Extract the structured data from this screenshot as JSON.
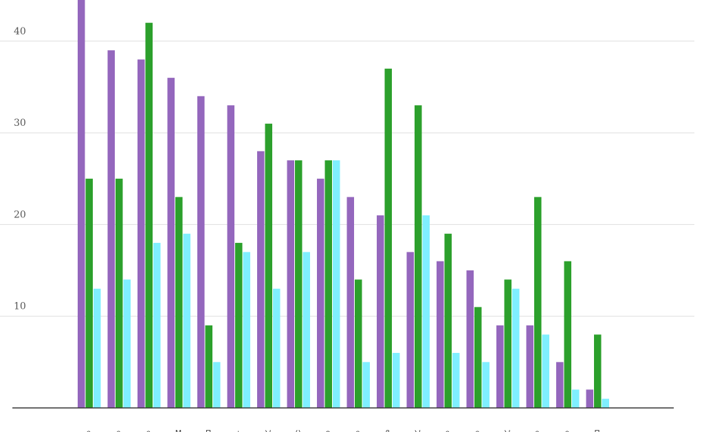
{
  "chart_data": {
    "type": "bar",
    "title": "",
    "xlabel": "",
    "ylabel": "",
    "ylim": [
      0,
      45
    ],
    "yticks": [
      10,
      20,
      30,
      40
    ],
    "grid": true,
    "categories": [
      "ก",
      "ก",
      "ก",
      "M",
      "П",
      "ㅅ",
      "ソ",
      "()",
      "ค",
      "ก",
      "ß",
      "ソ",
      "ก",
      "ก",
      "ソ",
      "ก",
      "ก",
      "П"
    ],
    "series": [
      {
        "values": [
          45,
          39,
          38,
          36,
          34,
          33,
          28,
          27,
          25,
          23,
          21,
          17,
          16,
          15,
          9,
          9,
          5,
          2
        ]
      },
      {
        "values": [
          25,
          25,
          42,
          23,
          9,
          18,
          31,
          27,
          27,
          14,
          37,
          33,
          19,
          11,
          14,
          23,
          16,
          8
        ]
      },
      {
        "values": [
          13,
          14,
          18,
          19,
          5,
          17,
          13,
          17,
          27,
          5,
          6,
          21,
          6,
          5,
          13,
          8,
          2,
          1
        ]
      }
    ],
    "colors": [
      "#9467bd",
      "#2ca02c",
      "#7fefff"
    ]
  }
}
